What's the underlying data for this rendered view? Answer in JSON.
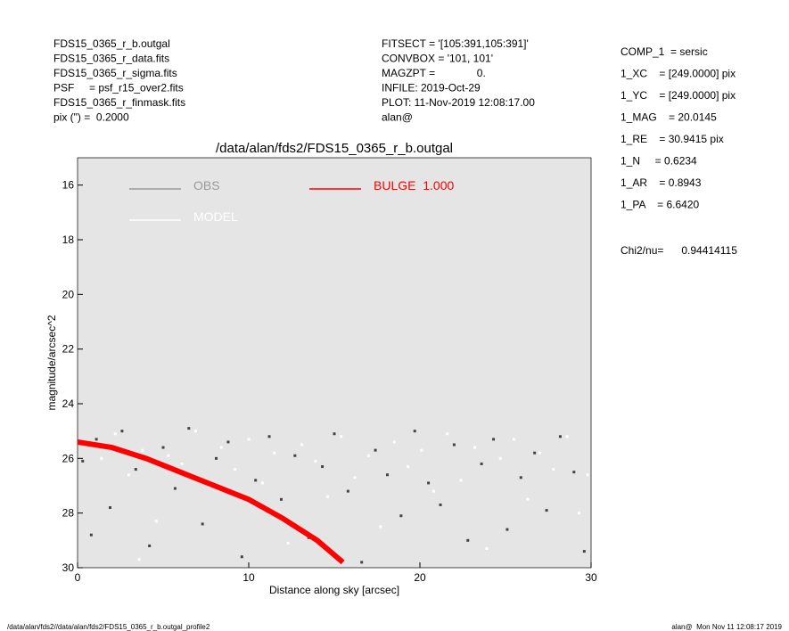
{
  "header": {
    "left": [
      "FDS15_0365_r_b.outgal",
      "FDS15_0365_r_data.fits",
      "FDS15_0365_r_sigma.fits",
      "PSF     = psf_r15_over2.fits",
      "FDS15_0365_r_finmask.fits",
      "pix (\") =  0.2000"
    ],
    "middle": [
      "FITSECT = '[105:391,105:391]'",
      "CONVBOX = '101, 101'",
      "MAGZPT =              0.",
      "INFILE: 2019-Oct-29",
      "PLOT: 11-Nov-2019 12:08:17.00",
      "alan@"
    ],
    "right": [
      "COMP_1  = sersic",
      "1_XC    = [249.0000] pix",
      "1_YC    = [249.0000] pix",
      "1_MAG    = 20.0145",
      "1_RE    = 30.9415 pix",
      "1_N     = 0.6234",
      "1_AR    = 0.8943",
      "1_PA    = 6.6420"
    ],
    "chi2": "Chi2/nu=      0.94414115"
  },
  "footer": {
    "left": "/data/alan/fds2//data/alan/fds2/FDS15_0365_r_b.outgal_profile2",
    "right": "alan@  Mon Nov 11 12:08:17 2019"
  },
  "chart_data": {
    "type": "scatter",
    "title": "/data/alan/fds2/FDS15_0365_r_b.outgal",
    "x_label": "Distance along sky [arcsec]",
    "y_label": "magnitude/arcsec^2",
    "xlim": [
      0,
      30
    ],
    "xticks": [
      0,
      10,
      20,
      30
    ],
    "ylim": [
      30,
      15
    ],
    "yticks": [
      16,
      18,
      20,
      22,
      24,
      26,
      28,
      30
    ],
    "background": "#e5e5e5",
    "series": [
      {
        "name": "OBS",
        "color": "#444444",
        "legend_color": "#999999",
        "kind": "points",
        "x": [
          0.3,
          1.1,
          1.9,
          2.6,
          3.4,
          4.2,
          5.0,
          5.7,
          6.5,
          7.3,
          8.1,
          8.8,
          9.6,
          10.4,
          11.2,
          11.9,
          12.7,
          13.5,
          14.3,
          15.0,
          15.8,
          16.6,
          17.4,
          18.1,
          18.9,
          19.7,
          20.5,
          21.2,
          22.0,
          22.8,
          23.6,
          24.3,
          25.1,
          25.9,
          26.7,
          27.4,
          28.2,
          29.0,
          29.6,
          0.8
        ],
        "values": [
          26.1,
          25.3,
          27.8,
          25.0,
          26.4,
          29.2,
          25.6,
          27.1,
          24.9,
          28.4,
          26.0,
          25.4,
          29.6,
          26.8,
          25.2,
          27.5,
          25.9,
          28.9,
          26.3,
          25.1,
          27.2,
          29.8,
          25.7,
          26.6,
          28.1,
          25.0,
          26.9,
          27.7,
          25.5,
          29.0,
          26.2,
          25.3,
          28.6,
          26.7,
          25.8,
          27.9,
          25.2,
          26.5,
          29.4,
          28.8
        ]
      },
      {
        "name": "MODEL",
        "color": "#ffffff",
        "legend_color": "#ffffff",
        "kind": "points",
        "x": [
          0.6,
          1.4,
          2.2,
          3.0,
          3.8,
          4.6,
          5.3,
          6.1,
          6.9,
          7.7,
          8.4,
          9.2,
          10.0,
          10.8,
          11.5,
          12.3,
          13.1,
          13.9,
          14.6,
          15.4,
          16.2,
          17.0,
          17.7,
          18.5,
          19.3,
          20.1,
          20.8,
          21.6,
          22.4,
          23.2,
          23.9,
          24.7,
          25.5,
          26.3,
          27.0,
          27.8,
          28.6,
          29.3,
          29.8,
          3.6
        ],
        "values": [
          25.4,
          26.0,
          25.1,
          26.6,
          25.7,
          28.3,
          25.9,
          26.2,
          25.0,
          27.0,
          25.6,
          26.4,
          25.3,
          26.9,
          25.8,
          29.1,
          25.5,
          26.1,
          27.4,
          25.2,
          26.7,
          25.9,
          28.5,
          25.4,
          26.3,
          25.7,
          27.2,
          25.1,
          26.8,
          25.6,
          29.3,
          26.0,
          25.3,
          27.5,
          25.8,
          26.4,
          25.2,
          28.0,
          26.6,
          29.7
        ]
      },
      {
        "name": "BULGE  1.000",
        "color": "#ff0000",
        "legend_color": "#ff0000",
        "kind": "line",
        "x": [
          0,
          2,
          4,
          6,
          8,
          10,
          12,
          14,
          15.5
        ],
        "values": [
          25.4,
          25.6,
          26.0,
          26.5,
          27.0,
          27.5,
          28.2,
          29.0,
          29.8
        ]
      }
    ]
  }
}
